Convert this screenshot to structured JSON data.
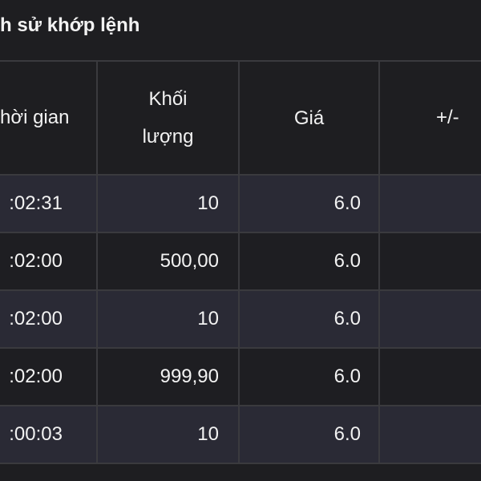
{
  "title": "h sử khớp lệnh",
  "table": {
    "headers": [
      "hời gian",
      "Khối lượng",
      "Giá",
      "+/-"
    ],
    "rows": [
      {
        "time": ":02:31",
        "volume": "10",
        "price": "6.0",
        "change": ""
      },
      {
        "time": ":02:00",
        "volume": "500,00",
        "price": "6.0",
        "change": ""
      },
      {
        "time": ":02:00",
        "volume": "10",
        "price": "6.0",
        "change": ""
      },
      {
        "time": ":02:00",
        "volume": "999,90",
        "price": "6.0",
        "change": ""
      },
      {
        "time": ":00:03",
        "volume": "10",
        "price": "6.0",
        "change": ""
      }
    ]
  },
  "colors": {
    "background": "#1e1e21",
    "row_alt": "#2a2a35",
    "border": "#3a3a3e",
    "text": "#f2f2f2"
  }
}
